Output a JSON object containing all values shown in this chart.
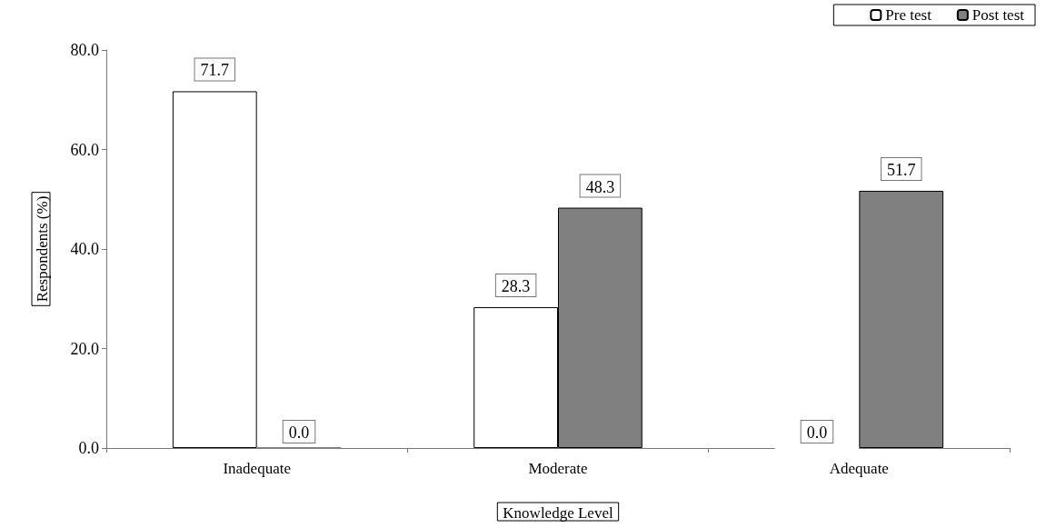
{
  "chart_data": {
    "type": "bar",
    "xlabel": "Knowledge Level",
    "ylabel": "Respondents (%)",
    "categories": [
      "Inadequate",
      "Moderate",
      "Adequate"
    ],
    "series": [
      {
        "name": "Pre test",
        "color": "#ffffff",
        "values": [
          71.7,
          28.3,
          0.0
        ],
        "value_labels": [
          "71.7",
          "28.3",
          "0.0"
        ]
      },
      {
        "name": "Post test",
        "color": "#808080",
        "values": [
          0.0,
          48.3,
          51.7
        ],
        "value_labels": [
          "0.0",
          "48.3",
          "51.7"
        ]
      }
    ],
    "ylim": [
      0,
      80
    ],
    "yticks": [
      {
        "value": 0,
        "label": "0.0"
      },
      {
        "value": 20,
        "label": "20.0"
      },
      {
        "value": 40,
        "label": "40.0"
      },
      {
        "value": 60,
        "label": "60.0"
      },
      {
        "value": 80,
        "label": "80.0"
      }
    ],
    "grid": false,
    "legend": "top right"
  }
}
